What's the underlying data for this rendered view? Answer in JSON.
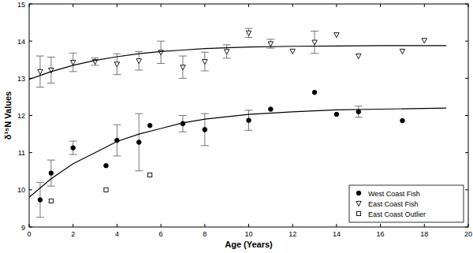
{
  "chart_data": {
    "type": "scatter",
    "x_label": "Age (Years)",
    "y_label": "δ¹⁵N Values",
    "xlim": [
      0,
      20
    ],
    "xticks": [
      0,
      2,
      4,
      6,
      8,
      10,
      12,
      14,
      16,
      18,
      20
    ],
    "ylim": [
      9,
      15
    ],
    "yticks": [
      9,
      10,
      11,
      12,
      13,
      14,
      15
    ],
    "grid": false,
    "legend": "lower right",
    "series": [
      {
        "name": "West Coast Fish",
        "type": "scatter",
        "marker": "filled-circle",
        "color": "#000000",
        "x": [
          0.5,
          1,
          2,
          3.5,
          4,
          5,
          5.5,
          7,
          8,
          10,
          11,
          13,
          14,
          15,
          17
        ],
        "values": [
          9.73,
          10.45,
          11.13,
          10.65,
          11.33,
          11.28,
          11.73,
          11.78,
          11.62,
          11.87,
          12.17,
          12.62,
          12.03,
          12.1,
          11.86
        ],
        "errors": [
          0.47,
          0.35,
          0.18,
          null,
          0.42,
          0.77,
          null,
          0.22,
          0.43,
          0.27,
          null,
          null,
          null,
          0.15,
          null
        ]
      },
      {
        "name": "East Coast Fish",
        "type": "scatter",
        "marker": "open-triangle-down",
        "color": "#000000",
        "x": [
          0.5,
          1,
          2,
          3,
          4,
          5,
          6,
          7,
          8,
          9,
          10,
          11,
          12,
          13,
          14,
          15,
          17,
          18
        ],
        "values": [
          13.18,
          13.22,
          13.43,
          13.45,
          13.38,
          13.47,
          13.7,
          13.3,
          13.45,
          13.72,
          14.22,
          13.93,
          13.73,
          13.97,
          14.17,
          13.6,
          13.73,
          14.02
        ],
        "errors": [
          0.42,
          0.35,
          0.25,
          0.1,
          0.28,
          0.25,
          0.3,
          0.3,
          0.25,
          0.18,
          0.12,
          0.12,
          null,
          0.3,
          null,
          null,
          null,
          null
        ]
      },
      {
        "name": "East Coast Outlier",
        "type": "scatter",
        "marker": "open-square",
        "color": "#000000",
        "x": [
          1,
          3.5,
          5.5
        ],
        "values": [
          9.7,
          10.0,
          10.4
        ]
      },
      {
        "type": "line",
        "line_style": "solid",
        "color": "#000000",
        "x": [
          0,
          1,
          2,
          3,
          4,
          5,
          6,
          7,
          8,
          10,
          12,
          14,
          16,
          19
        ],
        "values": [
          9.8,
          10.3,
          10.7,
          11.0,
          11.3,
          11.5,
          11.65,
          11.8,
          11.9,
          12.03,
          12.1,
          12.15,
          12.17,
          12.2
        ]
      },
      {
        "type": "line",
        "line_style": "solid",
        "color": "#000000",
        "x": [
          0,
          1,
          2,
          3,
          4,
          5,
          6,
          7,
          8,
          10,
          12,
          14,
          16,
          19
        ],
        "values": [
          12.97,
          13.18,
          13.35,
          13.48,
          13.58,
          13.66,
          13.72,
          13.76,
          13.8,
          13.84,
          13.86,
          13.87,
          13.88,
          13.88
        ]
      }
    ]
  }
}
